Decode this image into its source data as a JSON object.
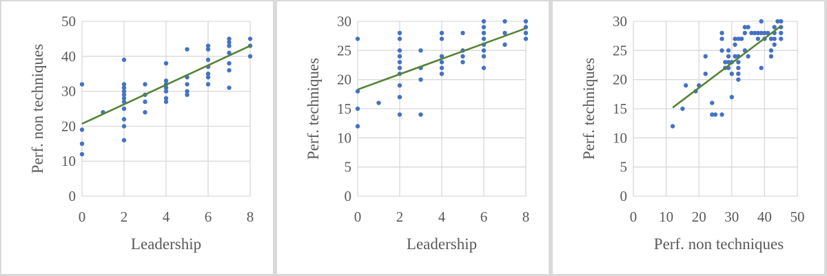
{
  "colors": {
    "points": "#4472c4",
    "trendline": "#548235",
    "grid": "#d9d9d9",
    "text": "#595959"
  },
  "chart_data": [
    {
      "type": "scatter",
      "xlabel": "Leadership",
      "ylabel": "Perf. non techniques",
      "xlim": [
        0,
        8
      ],
      "ylim": [
        0,
        50
      ],
      "xticks": [
        0,
        2,
        4,
        6,
        8
      ],
      "yticks": [
        0,
        10,
        20,
        30,
        40,
        50
      ],
      "grid": true,
      "trendline": {
        "type": "linear",
        "x": [
          0,
          8
        ],
        "y": [
          20.7,
          43
        ]
      },
      "points": [
        [
          0,
          32
        ],
        [
          0,
          19
        ],
        [
          0,
          15
        ],
        [
          0,
          12
        ],
        [
          1,
          24
        ],
        [
          2,
          39
        ],
        [
          2,
          32
        ],
        [
          2,
          31
        ],
        [
          2,
          30
        ],
        [
          2,
          29
        ],
        [
          2,
          28
        ],
        [
          2,
          27
        ],
        [
          2,
          25
        ],
        [
          2,
          22
        ],
        [
          2,
          20
        ],
        [
          2,
          16
        ],
        [
          3,
          32
        ],
        [
          3,
          29
        ],
        [
          3,
          27
        ],
        [
          3,
          24
        ],
        [
          4,
          38
        ],
        [
          4,
          33
        ],
        [
          4,
          32
        ],
        [
          4,
          31
        ],
        [
          4,
          30
        ],
        [
          4,
          28
        ],
        [
          4,
          27
        ],
        [
          5,
          42
        ],
        [
          5,
          34
        ],
        [
          5,
          32
        ],
        [
          5,
          30
        ],
        [
          5,
          29
        ],
        [
          6,
          43
        ],
        [
          6,
          42
        ],
        [
          6,
          39
        ],
        [
          6,
          37
        ],
        [
          6,
          35
        ],
        [
          6,
          34
        ],
        [
          6,
          32
        ],
        [
          7,
          45
        ],
        [
          7,
          44
        ],
        [
          7,
          43
        ],
        [
          7,
          41
        ],
        [
          7,
          38
        ],
        [
          7,
          36
        ],
        [
          7,
          31
        ],
        [
          8,
          45
        ],
        [
          8,
          43
        ],
        [
          8,
          40
        ]
      ]
    },
    {
      "type": "scatter",
      "xlabel": "Leadership",
      "ylabel": "Perf. techniques",
      "xlim": [
        0,
        8
      ],
      "ylim": [
        0,
        30
      ],
      "xticks": [
        0,
        2,
        4,
        6,
        8
      ],
      "yticks": [
        0,
        5,
        10,
        15,
        20,
        25,
        30
      ],
      "grid": true,
      "trendline": {
        "type": "linear",
        "x": [
          0,
          8
        ],
        "y": [
          18.3,
          28.8
        ]
      },
      "points": [
        [
          0,
          27
        ],
        [
          0,
          18
        ],
        [
          0,
          15
        ],
        [
          0,
          12
        ],
        [
          1,
          16
        ],
        [
          2,
          28
        ],
        [
          2,
          27
        ],
        [
          2,
          25
        ],
        [
          2,
          24
        ],
        [
          2,
          23
        ],
        [
          2,
          22
        ],
        [
          2,
          21
        ],
        [
          2,
          19
        ],
        [
          2,
          17
        ],
        [
          2,
          14
        ],
        [
          3,
          25
        ],
        [
          3,
          22
        ],
        [
          3,
          20
        ],
        [
          3,
          14
        ],
        [
          4,
          28
        ],
        [
          4,
          27
        ],
        [
          4,
          24
        ],
        [
          4,
          23
        ],
        [
          4,
          22
        ],
        [
          4,
          21
        ],
        [
          5,
          28
        ],
        [
          5,
          25
        ],
        [
          5,
          24
        ],
        [
          5,
          23
        ],
        [
          6,
          30
        ],
        [
          6,
          29
        ],
        [
          6,
          28
        ],
        [
          6,
          27
        ],
        [
          6,
          26
        ],
        [
          6,
          25
        ],
        [
          6,
          24
        ],
        [
          6,
          22
        ],
        [
          7,
          30
        ],
        [
          7,
          28
        ],
        [
          7,
          26
        ],
        [
          8,
          30
        ],
        [
          8,
          29
        ],
        [
          8,
          28
        ],
        [
          8,
          27
        ]
      ]
    },
    {
      "type": "scatter",
      "xlabel": "Perf. non techniques",
      "ylabel": "Perf. techniques",
      "xlim": [
        0,
        50
      ],
      "ylim": [
        0,
        30
      ],
      "xticks": [
        0,
        10,
        20,
        30,
        40,
        50
      ],
      "yticks": [
        0,
        5,
        10,
        15,
        20,
        25,
        30
      ],
      "grid": true,
      "trendline": {
        "type": "linear",
        "x": [
          12,
          45
        ],
        "y": [
          15.2,
          29.2
        ]
      },
      "points": [
        [
          12,
          12
        ],
        [
          15,
          15
        ],
        [
          16,
          19
        ],
        [
          19,
          18
        ],
        [
          20,
          19
        ],
        [
          22,
          24
        ],
        [
          22,
          21
        ],
        [
          24,
          16
        ],
        [
          24,
          14
        ],
        [
          25,
          14
        ],
        [
          27,
          14
        ],
        [
          27,
          28
        ],
        [
          27,
          27
        ],
        [
          27,
          25
        ],
        [
          28,
          23
        ],
        [
          28,
          22
        ],
        [
          29,
          25
        ],
        [
          29,
          24
        ],
        [
          29,
          23
        ],
        [
          29,
          22
        ],
        [
          30,
          23
        ],
        [
          30,
          21
        ],
        [
          30,
          17
        ],
        [
          31,
          27
        ],
        [
          31,
          26
        ],
        [
          31,
          24
        ],
        [
          32,
          27
        ],
        [
          32,
          24
        ],
        [
          32,
          23
        ],
        [
          32,
          22
        ],
        [
          32,
          21
        ],
        [
          32,
          20
        ],
        [
          33,
          27
        ],
        [
          34,
          29
        ],
        [
          34,
          28
        ],
        [
          34,
          25
        ],
        [
          35,
          29
        ],
        [
          35,
          24
        ],
        [
          36,
          28
        ],
        [
          37,
          28
        ],
        [
          38,
          28
        ],
        [
          38,
          27
        ],
        [
          39,
          30
        ],
        [
          39,
          28
        ],
        [
          39,
          22
        ],
        [
          40,
          28
        ],
        [
          40,
          27
        ],
        [
          41,
          28
        ],
        [
          42,
          27
        ],
        [
          42,
          25
        ],
        [
          42,
          24
        ],
        [
          43,
          29
        ],
        [
          43,
          28
        ],
        [
          43,
          27
        ],
        [
          43,
          26
        ],
        [
          44,
          30
        ],
        [
          45,
          30
        ],
        [
          45,
          29
        ],
        [
          45,
          28
        ],
        [
          45,
          27
        ]
      ]
    }
  ]
}
